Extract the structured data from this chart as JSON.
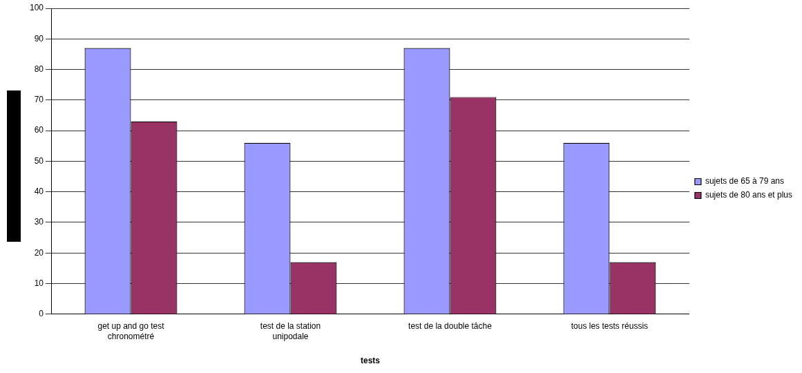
{
  "chart_data": {
    "type": "bar",
    "xlabel": "tests",
    "categories": [
      "get up and go test chronométré",
      "test de la station unipodale",
      "test de la double tâche",
      "tous les tests réussis"
    ],
    "series": [
      {
        "name": "sujets de 65 à 79 ans",
        "color": "#9999ff",
        "values": [
          87,
          56,
          87,
          56
        ]
      },
      {
        "name": "sujets de 80 ans et plus",
        "color": "#993366",
        "values": [
          63,
          17,
          71,
          17
        ]
      }
    ],
    "ylim": [
      0,
      100
    ],
    "yticks": [
      0,
      10,
      20,
      30,
      40,
      50,
      60,
      70,
      80,
      90,
      100
    ],
    "grid": "y",
    "legend": "right"
  }
}
